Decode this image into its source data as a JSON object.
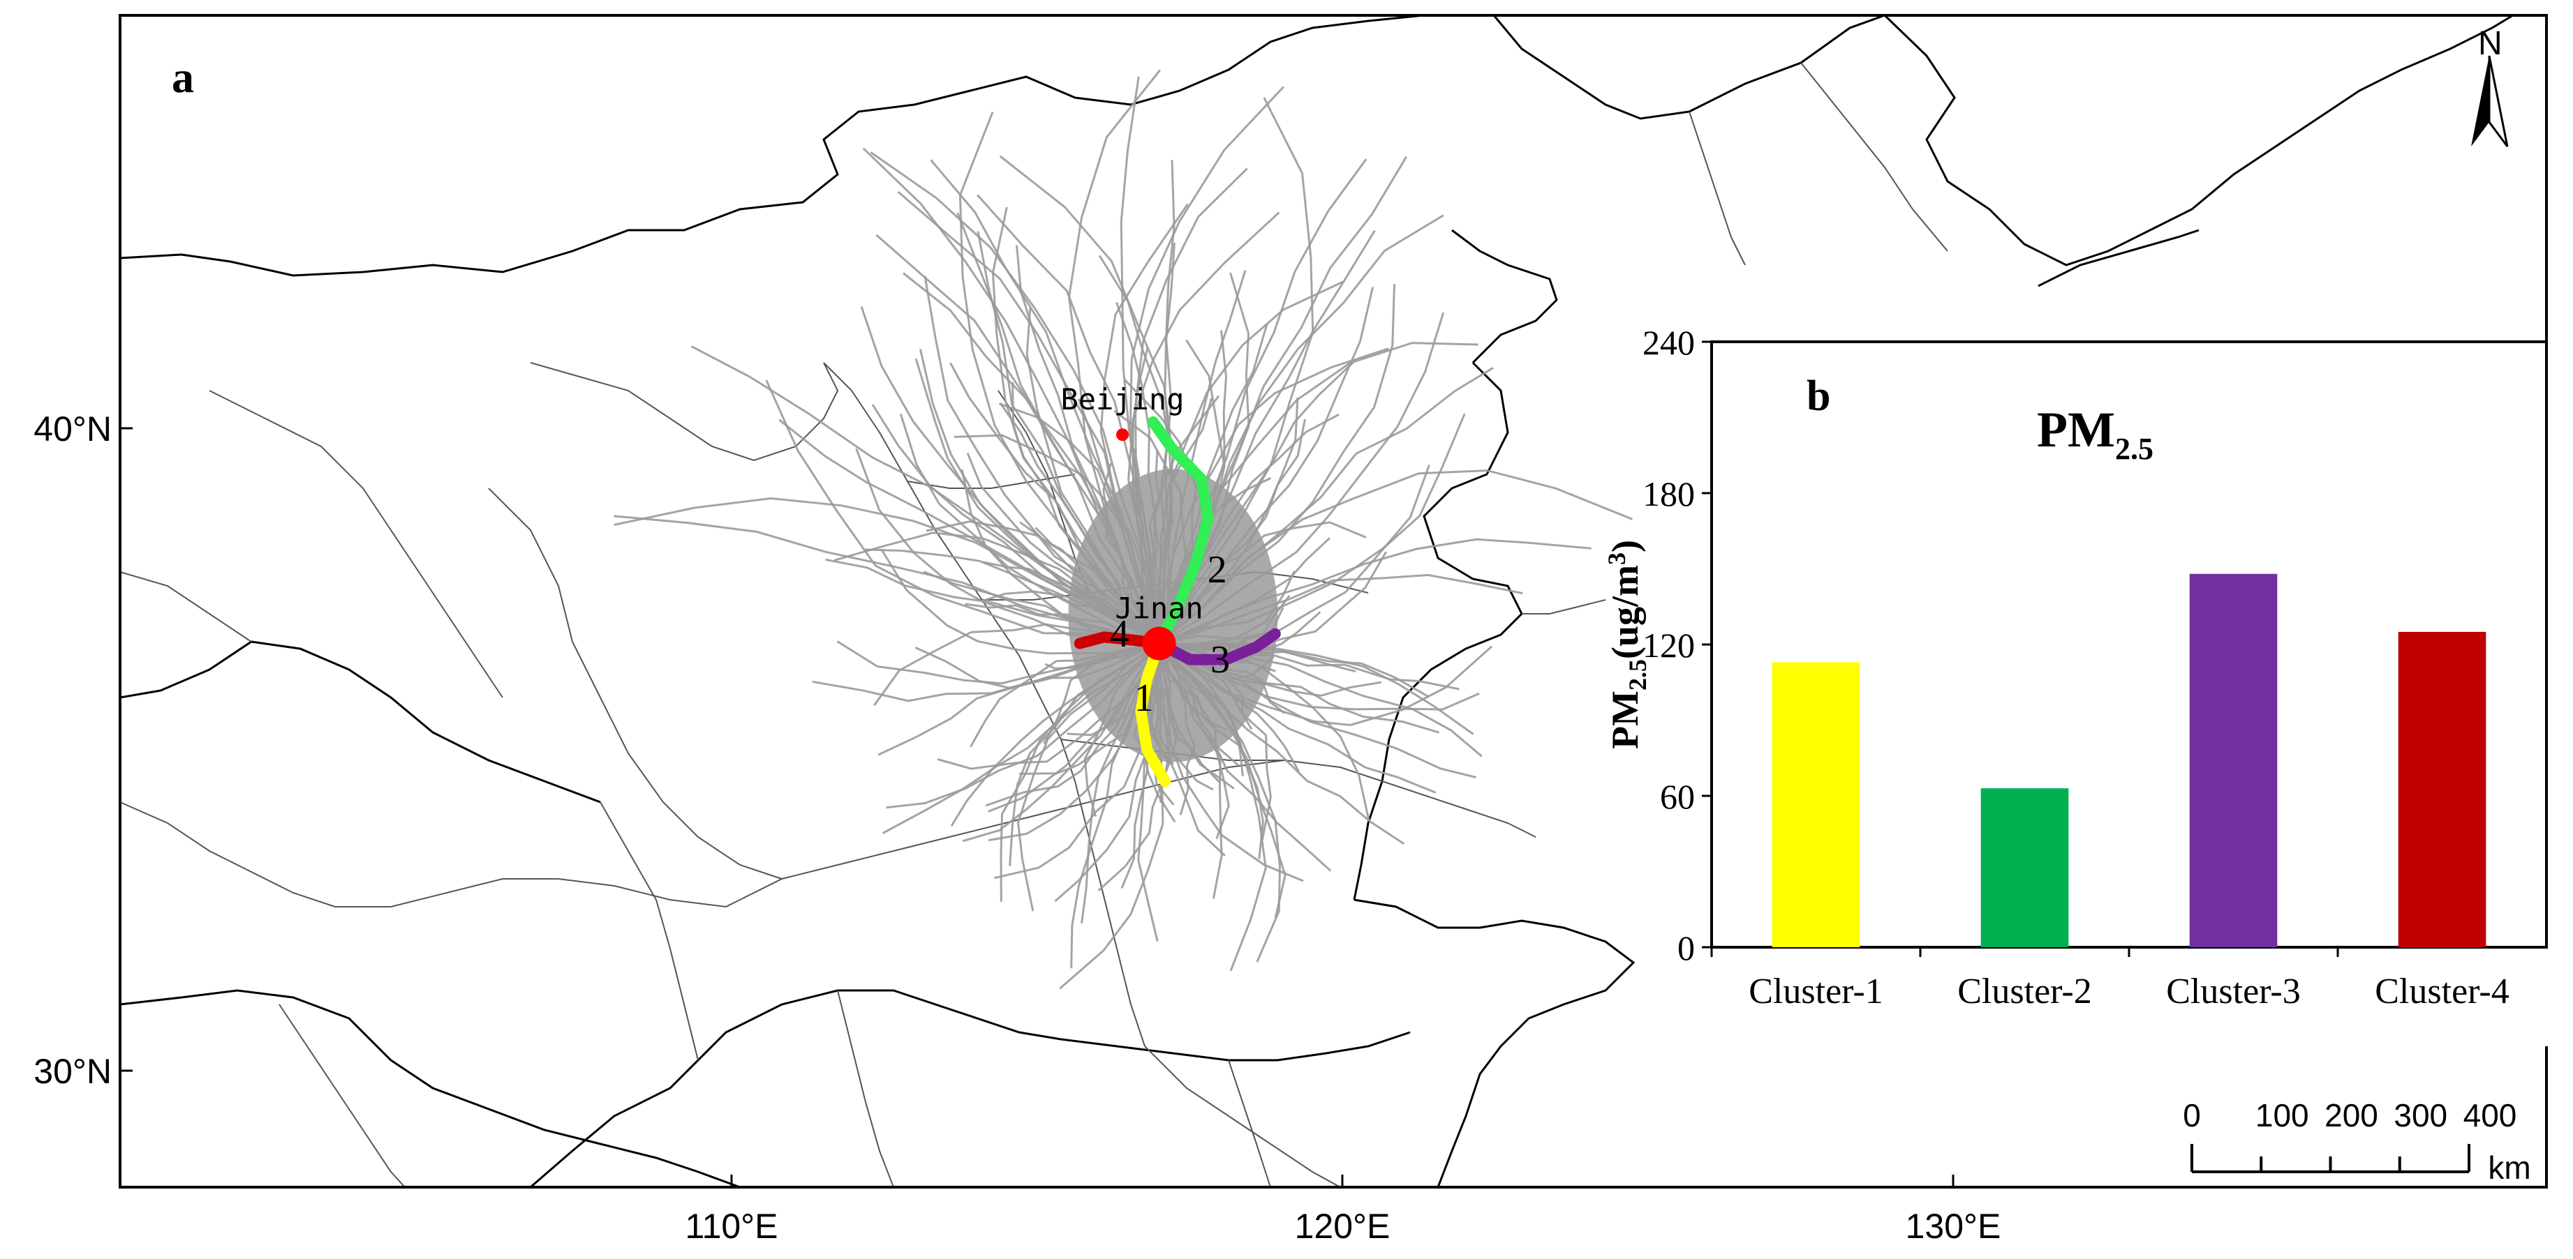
{
  "map": {
    "panel_label": "a",
    "north_label": "N",
    "lat_ticks": [
      {
        "label": "40°N",
        "value": 40
      },
      {
        "label": "30°N",
        "value": 30
      }
    ],
    "lon_ticks": [
      {
        "label": "110°E",
        "value": 110
      },
      {
        "label": "120°E",
        "value": 120
      },
      {
        "label": "130°E",
        "value": 130
      }
    ],
    "cities": [
      {
        "name": "Beijing",
        "lon": 116.4,
        "lat": 39.9,
        "color": "#ff0000"
      },
      {
        "name": "Jinan",
        "lon": 117.0,
        "lat": 36.65,
        "color": "#ff0000"
      }
    ],
    "cluster_tracks": [
      {
        "id": "1",
        "color": "#ffff00",
        "points": [
          [
            117.0,
            36.65
          ],
          [
            116.8,
            36.1
          ],
          [
            116.7,
            35.6
          ],
          [
            116.8,
            35.0
          ],
          [
            117.1,
            34.5
          ]
        ]
      },
      {
        "id": "2",
        "color": "#33ee55",
        "points": [
          [
            117.0,
            36.65
          ],
          [
            117.3,
            37.2
          ],
          [
            117.6,
            37.9
          ],
          [
            117.8,
            38.6
          ],
          [
            117.7,
            39.2
          ],
          [
            117.2,
            39.7
          ],
          [
            116.9,
            40.1
          ]
        ]
      },
      {
        "id": "3",
        "color": "#7a1f9a",
        "points": [
          [
            117.0,
            36.65
          ],
          [
            117.5,
            36.4
          ],
          [
            118.1,
            36.4
          ],
          [
            118.6,
            36.6
          ],
          [
            118.9,
            36.8
          ]
        ]
      },
      {
        "id": "4",
        "color": "#cc0000",
        "points": [
          [
            117.0,
            36.65
          ],
          [
            116.6,
            36.7
          ],
          [
            116.1,
            36.75
          ],
          [
            115.7,
            36.65
          ]
        ]
      }
    ],
    "scale_bar": {
      "labels": [
        "0",
        "100",
        "200",
        "300",
        "400"
      ],
      "unit": "km"
    },
    "colors": {
      "trajectories": "#9a9a9a",
      "boundaries": "#000000",
      "provinces": "#555555"
    }
  },
  "chart_data": {
    "type": "bar",
    "panel_label": "b",
    "title": "PM",
    "title_sub": "2.5",
    "ylabel": "PM",
    "ylabel_sub": "2.5",
    "ylabel_unit": "(ug/m",
    "ylabel_sup": "3",
    "ylabel_close": ")",
    "ylim": [
      0,
      240
    ],
    "yticks": [
      0,
      60,
      120,
      180,
      240
    ],
    "categories": [
      "Cluster-1",
      "Cluster-2",
      "Cluster-3",
      "Cluster-4"
    ],
    "values": [
      113,
      63,
      148,
      125
    ],
    "colors": [
      "#ffff00",
      "#00b050",
      "#7030a0",
      "#c00000"
    ],
    "grid": false,
    "legend": "none"
  }
}
